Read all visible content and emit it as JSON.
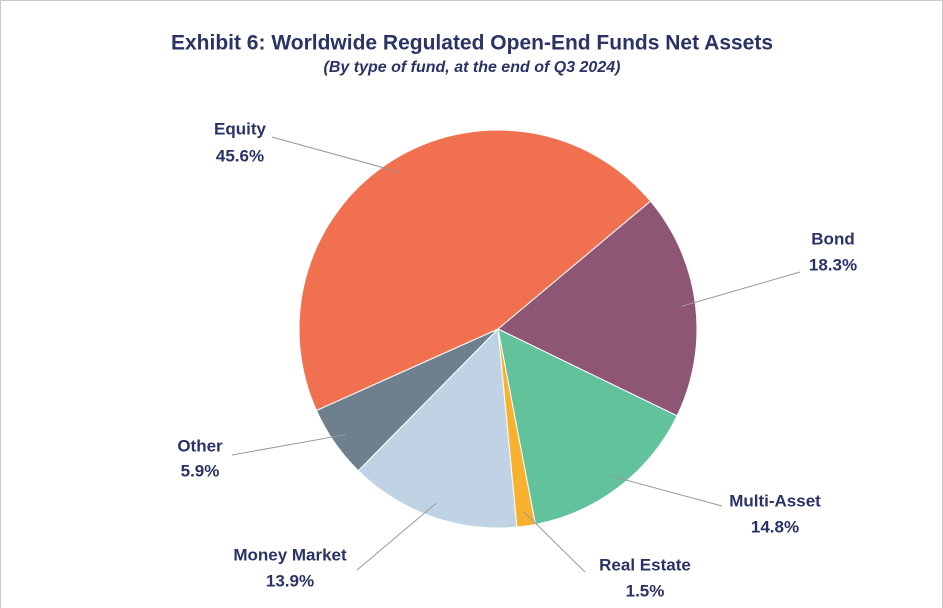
{
  "chart_data": {
    "type": "pie",
    "title": "Exhibit 6: Worldwide Regulated Open-End Funds Net Assets",
    "subtitle": "(By type of fund, at the end of Q3 2024)",
    "categories": [
      "Bond",
      "Multi-Asset",
      "Real Estate",
      "Money Market",
      "Other",
      "Equity"
    ],
    "values": [
      18.3,
      14.8,
      1.5,
      13.9,
      5.9,
      45.6
    ],
    "value_labels": [
      "18.3%",
      "14.8%",
      "1.5%",
      "13.9%",
      "5.9%",
      "45.6%"
    ],
    "colors": [
      "#8e5574",
      "#62c29c",
      "#f7b12f",
      "#bfd3e4",
      "#6e808e",
      "#f07050"
    ]
  }
}
